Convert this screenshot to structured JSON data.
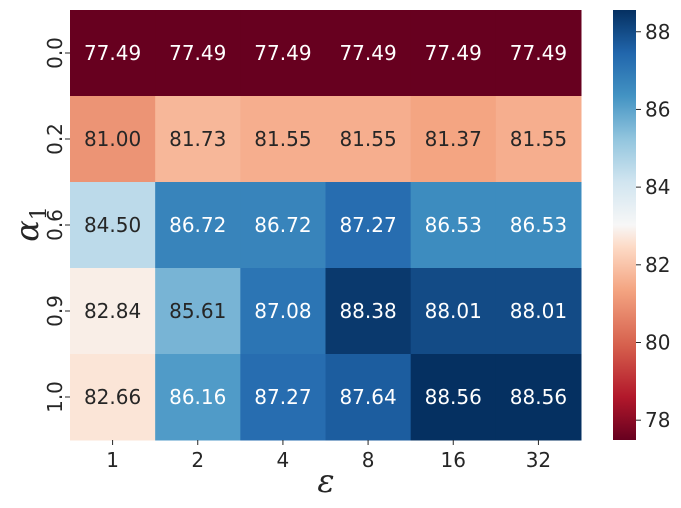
{
  "chart_data": {
    "type": "heatmap",
    "title": "",
    "xlabel": "ε",
    "ylabel_main": "α",
    "ylabel_sub": "1",
    "x_categories": [
      "1",
      "2",
      "4",
      "8",
      "16",
      "32"
    ],
    "y_categories": [
      "0.0",
      "0.2",
      "0.6",
      "0.9",
      "1.0"
    ],
    "values": [
      [
        77.49,
        77.49,
        77.49,
        77.49,
        77.49,
        77.49
      ],
      [
        81.0,
        81.73,
        81.55,
        81.55,
        81.37,
        81.55
      ],
      [
        84.5,
        86.72,
        86.72,
        87.27,
        86.53,
        86.53
      ],
      [
        82.84,
        85.61,
        87.08,
        88.38,
        88.01,
        88.01
      ],
      [
        82.66,
        86.16,
        87.27,
        87.64,
        88.56,
        88.56
      ]
    ],
    "value_format": "2 decimals",
    "colormap": "RdBu",
    "colorbar": {
      "min": 77.49,
      "max": 88.56,
      "ticks": [
        "78",
        "80",
        "82",
        "84",
        "86",
        "88"
      ]
    },
    "grid": false
  }
}
